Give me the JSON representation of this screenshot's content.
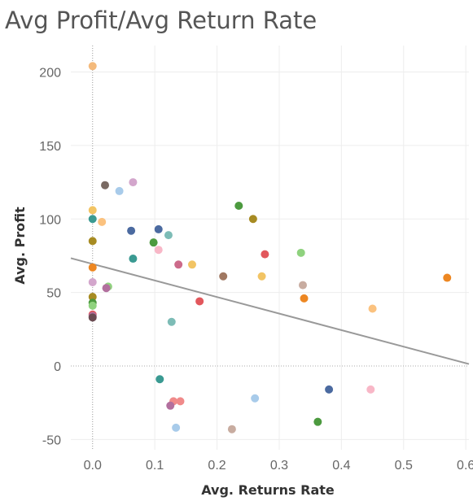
{
  "chart_data": {
    "type": "scatter",
    "title": "Avg Profit/Avg Return Rate",
    "xlabel": "Avg. Returns Rate",
    "ylabel": "Avg. Profit",
    "xlim": [
      -0.035,
      0.605
    ],
    "ylim": [
      -57,
      218
    ],
    "x_ticks": [
      0.0,
      0.1,
      0.2,
      0.3,
      0.4,
      0.5,
      0.6
    ],
    "x_tick_labels": [
      "0.0",
      "0.1",
      "0.2",
      "0.3",
      "0.4",
      "0.5",
      "0.6"
    ],
    "y_ticks": [
      -50,
      0,
      50,
      100,
      150,
      200
    ],
    "y_tick_labels": [
      "-50",
      "0",
      "50",
      "100",
      "150",
      "200"
    ],
    "grid": true,
    "trend_line": {
      "slope": -112.5,
      "intercept": 69.4,
      "color": "#999999"
    },
    "points": [
      {
        "x": 0.0,
        "y": 204,
        "color": "#f4ba7c"
      },
      {
        "x": 0.02,
        "y": 123,
        "color": "#7a6a63"
      },
      {
        "x": 0.065,
        "y": 125,
        "color": "#d3a6cc"
      },
      {
        "x": 0.043,
        "y": 119,
        "color": "#a8cbea"
      },
      {
        "x": 0.0,
        "y": 106,
        "color": "#f2c464"
      },
      {
        "x": 0.0,
        "y": 100,
        "color": "#3a9a92"
      },
      {
        "x": 0.015,
        "y": 98,
        "color": "#fbc27f"
      },
      {
        "x": 0.062,
        "y": 92,
        "color": "#4b6aa0"
      },
      {
        "x": 0.106,
        "y": 93,
        "color": "#4b6aa0"
      },
      {
        "x": 0.122,
        "y": 89,
        "color": "#7dbcb6"
      },
      {
        "x": 0.0,
        "y": 85,
        "color": "#a78b22"
      },
      {
        "x": 0.098,
        "y": 84,
        "color": "#4c9a3f"
      },
      {
        "x": 0.106,
        "y": 79,
        "color": "#f8b7c7"
      },
      {
        "x": 0.065,
        "y": 73,
        "color": "#3a9a92"
      },
      {
        "x": 0.138,
        "y": 69,
        "color": "#cc6a8a"
      },
      {
        "x": 0.16,
        "y": 69,
        "color": "#f2c464"
      },
      {
        "x": 0.0,
        "y": 67,
        "color": "#ed8722"
      },
      {
        "x": 0.235,
        "y": 109,
        "color": "#4c9a3f"
      },
      {
        "x": 0.258,
        "y": 100,
        "color": "#a78b22"
      },
      {
        "x": 0.277,
        "y": 76,
        "color": "#e2575c"
      },
      {
        "x": 0.335,
        "y": 77,
        "color": "#8fd27e"
      },
      {
        "x": 0.21,
        "y": 61,
        "color": "#a07862"
      },
      {
        "x": 0.272,
        "y": 61,
        "color": "#f2c464"
      },
      {
        "x": 0.0,
        "y": 57,
        "color": "#d3a6cc"
      },
      {
        "x": 0.025,
        "y": 54,
        "color": "#8fd27e"
      },
      {
        "x": 0.022,
        "y": 53,
        "color": "#b26f9e"
      },
      {
        "x": 0.338,
        "y": 55,
        "color": "#c8aca0"
      },
      {
        "x": 0.34,
        "y": 46,
        "color": "#ed8722"
      },
      {
        "x": 0.57,
        "y": 60,
        "color": "#ed8722"
      },
      {
        "x": 0.0,
        "y": 47,
        "color": "#a78b22"
      },
      {
        "x": 0.172,
        "y": 44,
        "color": "#e2575c"
      },
      {
        "x": 0.45,
        "y": 39,
        "color": "#fbc27f"
      },
      {
        "x": 0.0,
        "y": 43,
        "color": "#4c9a3f"
      },
      {
        "x": 0.0,
        "y": 41,
        "color": "#8fd27e"
      },
      {
        "x": 0.0,
        "y": 35,
        "color": "#e2575c"
      },
      {
        "x": 0.0,
        "y": 34,
        "color": "#b26f9e"
      },
      {
        "x": 0.0,
        "y": 33,
        "color": "#6b4b52"
      },
      {
        "x": 0.127,
        "y": 30,
        "color": "#7dbcb6"
      },
      {
        "x": 0.108,
        "y": -9,
        "color": "#3a9a92"
      },
      {
        "x": 0.38,
        "y": -16,
        "color": "#4b6aa0"
      },
      {
        "x": 0.447,
        "y": -16,
        "color": "#f8b7c7"
      },
      {
        "x": 0.261,
        "y": -22,
        "color": "#a8cbea"
      },
      {
        "x": 0.13,
        "y": -24,
        "color": "#f08a8a"
      },
      {
        "x": 0.141,
        "y": -24,
        "color": "#f08a8a"
      },
      {
        "x": 0.125,
        "y": -27,
        "color": "#b26f9e"
      },
      {
        "x": 0.362,
        "y": -38,
        "color": "#4c9a3f"
      },
      {
        "x": 0.134,
        "y": -42,
        "color": "#a8cbea"
      },
      {
        "x": 0.224,
        "y": -43,
        "color": "#c8aca0"
      }
    ]
  }
}
